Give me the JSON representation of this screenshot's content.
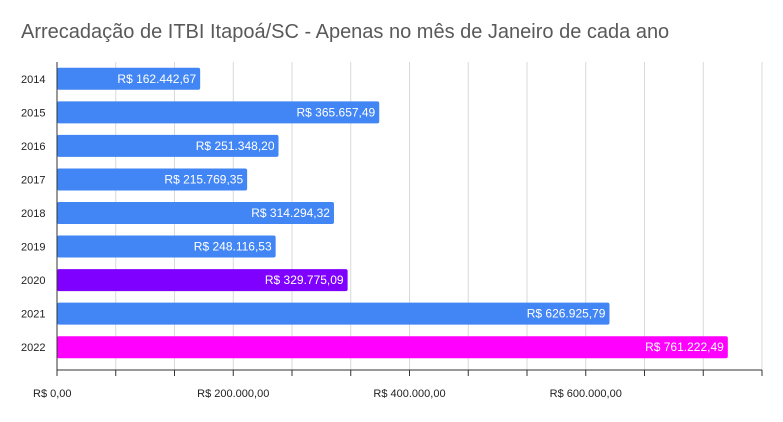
{
  "chart_data": {
    "type": "bar",
    "orientation": "horizontal",
    "title": "Arrecadação de ITBI Itapoá/SC - Apenas no mês de Janeiro de cada ano",
    "categories": [
      "2014",
      "2015",
      "2016",
      "2017",
      "2018",
      "2019",
      "2020",
      "2021",
      "2022"
    ],
    "values": [
      162442.67,
      365657.49,
      251348.2,
      215769.35,
      314294.32,
      248116.53,
      329775.09,
      626925.79,
      761222.49
    ],
    "data_labels": [
      "R$ 162.442,67",
      "R$ 365.657,49",
      "R$ 251.348,20",
      "R$ 215.769,35",
      "R$ 314.294,32",
      "R$ 248.116,53",
      "R$ 329.775,09",
      "R$ 626.925,79",
      "R$ 761.222,49"
    ],
    "bar_colors": [
      "#4285f4",
      "#4285f4",
      "#4285f4",
      "#4285f4",
      "#4285f4",
      "#4285f4",
      "#8000ff",
      "#4285f4",
      "#ff00ff"
    ],
    "x_ticks": [
      0,
      200000,
      400000,
      600000
    ],
    "x_tick_labels": [
      "R$ 0,00",
      "R$ 200.000,00",
      "R$ 400.000,00",
      "R$ 600.000,00"
    ],
    "xlim": [
      0,
      800000
    ],
    "grid": true,
    "legend": "none"
  }
}
